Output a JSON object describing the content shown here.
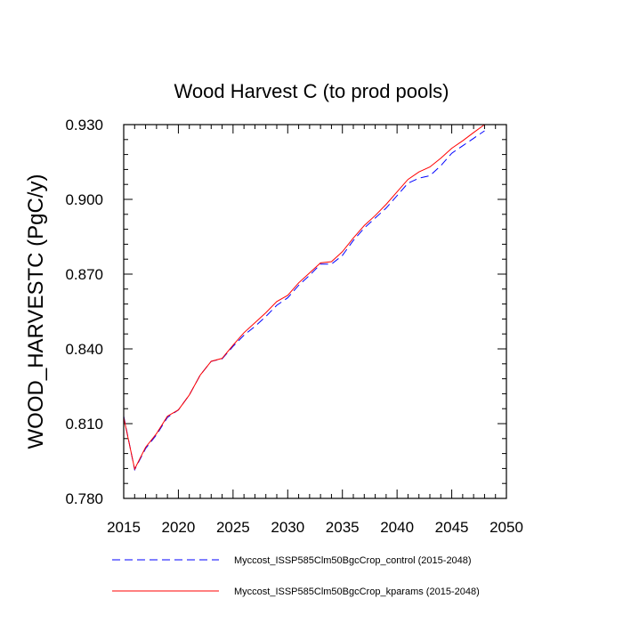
{
  "chart_data": {
    "type": "line",
    "title": "Wood Harvest C (to prod pools)",
    "xlabel": "",
    "ylabel": "WOOD_HARVESTC  (PgC/y)",
    "xlim": [
      2015,
      2050
    ],
    "ylim": [
      0.78,
      0.93
    ],
    "xticks": [
      2015,
      2020,
      2025,
      2030,
      2035,
      2040,
      2045,
      2050
    ],
    "xtick_labels": [
      "2015",
      "2020",
      "2025",
      "2030",
      "2035",
      "2040",
      "2045",
      "2050"
    ],
    "yticks": [
      0.78,
      0.81,
      0.84,
      0.87,
      0.9,
      0.93
    ],
    "ytick_labels": [
      "0.780",
      "0.810",
      "0.840",
      "0.870",
      "0.900",
      "0.930"
    ],
    "x": [
      2015,
      2016,
      2017,
      2018,
      2019,
      2020,
      2021,
      2022,
      2023,
      2024,
      2025,
      2026,
      2027,
      2028,
      2029,
      2030,
      2031,
      2032,
      2033,
      2034,
      2035,
      2036,
      2037,
      2038,
      2039,
      2040,
      2041,
      2042,
      2043,
      2044,
      2045,
      2046,
      2047,
      2048
    ],
    "series": [
      {
        "name": "Myccost_ISSP585Clm50BgcCrop_control (2015-2048)",
        "color": "#0000ff",
        "style": "dashed",
        "values": [
          0.813,
          0.7915,
          0.8,
          0.8055,
          0.8125,
          0.8155,
          0.8215,
          0.8295,
          0.835,
          0.836,
          0.841,
          0.8455,
          0.849,
          0.853,
          0.8575,
          0.8605,
          0.8655,
          0.8695,
          0.874,
          0.874,
          0.8775,
          0.8835,
          0.8885,
          0.8925,
          0.8965,
          0.9015,
          0.9065,
          0.9085,
          0.9095,
          0.9135,
          0.9185,
          0.9215,
          0.9245,
          0.9275
        ]
      },
      {
        "name": "Myccost_ISSP585Clm50BgcCrop_kparams (2015-2048)",
        "color": "#ff0000",
        "style": "solid",
        "values": [
          0.8125,
          0.7918,
          0.8005,
          0.806,
          0.813,
          0.8155,
          0.8215,
          0.8295,
          0.835,
          0.8362,
          0.8415,
          0.8465,
          0.8505,
          0.8545,
          0.859,
          0.8615,
          0.8665,
          0.8705,
          0.8745,
          0.875,
          0.879,
          0.8845,
          0.8895,
          0.8935,
          0.898,
          0.903,
          0.908,
          0.911,
          0.913,
          0.9165,
          0.9205,
          0.9235,
          0.9268,
          0.93
        ]
      }
    ],
    "legend_position": "bottom"
  }
}
